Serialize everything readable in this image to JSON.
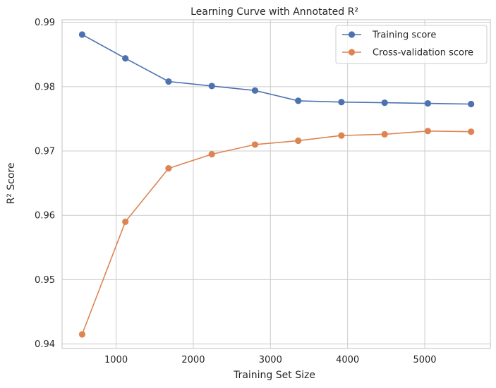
{
  "chart_data": {
    "type": "line",
    "title": "Learning Curve with Annotated R²",
    "xlabel": "Training Set Size",
    "ylabel": "R² Score",
    "xlim": [
      300,
      5850
    ],
    "ylim": [
      0.9393,
      0.9904
    ],
    "xticks": [
      1000,
      2000,
      3000,
      4000,
      5000
    ],
    "yticks": [
      0.94,
      0.95,
      0.96,
      0.97,
      0.98,
      0.99
    ],
    "ytick_labels": [
      "0.94",
      "0.95",
      "0.96",
      "0.97",
      "0.98",
      "0.99"
    ],
    "grid": true,
    "legend_position": "top-right",
    "x": [
      560,
      1120,
      1680,
      2240,
      2800,
      3360,
      3920,
      4480,
      5040,
      5600
    ],
    "series": [
      {
        "name": "Training score",
        "color": "#4c72b0",
        "values": [
          0.9881,
          0.9844,
          0.9808,
          0.9801,
          0.9794,
          0.9778,
          0.9776,
          0.9775,
          0.9774,
          0.9773
        ]
      },
      {
        "name": "Cross-validation score",
        "color": "#dd8452",
        "values": [
          0.9415,
          0.959,
          0.9673,
          0.9695,
          0.971,
          0.9716,
          0.9724,
          0.9726,
          0.9731,
          0.973
        ]
      }
    ]
  }
}
